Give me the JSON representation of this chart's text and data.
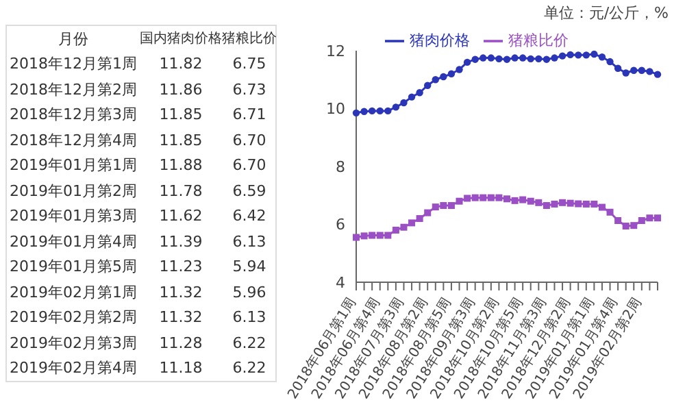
{
  "chart_data": [
    {
      "type": "other",
      "xlabel": "月份",
      "categories": [
        "2018年12月第1周",
        "2018年12月第2周",
        "2018年12月第3周",
        "2018年12月第4周",
        "2019年01月第1周",
        "2019年01月第2周",
        "2019年01月第3周",
        "2019年01月第4周",
        "2019年01月第5周",
        "2019年02月第1周",
        "2019年02月第2周",
        "2019年02月第3周",
        "2019年02月第4周"
      ],
      "data_labels": true,
      "series": [
        {
          "name": "国内猪肉价格",
          "values": [
            11.82,
            11.86,
            11.85,
            11.85,
            11.88,
            11.78,
            11.62,
            11.39,
            11.23,
            11.32,
            11.32,
            11.28,
            11.18
          ]
        },
        {
          "name": "猪粮比价",
          "values": [
            6.75,
            6.73,
            6.71,
            6.7,
            6.7,
            6.59,
            6.42,
            6.13,
            5.94,
            5.96,
            6.13,
            6.22,
            6.22
          ],
          "value_labels": [
            "6.75",
            "6.73",
            "6.71",
            "6.70",
            "6.70",
            "6.59",
            "6.42",
            "6.13",
            "5.94",
            "5.96",
            "6.13",
            "6.22",
            "6.22"
          ]
        }
      ]
    },
    {
      "type": "line",
      "annotations": [
        "单位：元/公斤，%"
      ],
      "categories": [
        "2018年06月第1周",
        null,
        null,
        "2018年06月第4周",
        null,
        null,
        "2018年07月第3周",
        null,
        null,
        "2018年08月第2周",
        null,
        null,
        "2018年08月第5周",
        null,
        null,
        "2018年09月第3周",
        null,
        null,
        "2018年10月第2周",
        null,
        null,
        "2018年10月第5周",
        null,
        null,
        "2018年11月第3周",
        null,
        null,
        "2018年12月第2周",
        null,
        null,
        "2019年01月第1周",
        null,
        null,
        "2019年01月第4周",
        null,
        null,
        "2019年02月第2周",
        null,
        null
      ],
      "series": [
        {
          "name": "猪肉价格",
          "color": "#2a35b8",
          "marker": "circle",
          "values": [
            9.85,
            9.9,
            9.92,
            9.92,
            9.92,
            10.05,
            10.2,
            10.4,
            10.55,
            10.8,
            11.0,
            11.1,
            11.2,
            11.35,
            11.6,
            11.7,
            11.75,
            11.75,
            11.72,
            11.7,
            11.75,
            11.75,
            11.72,
            11.72,
            11.7,
            11.75,
            11.82,
            11.86,
            11.85,
            11.85,
            11.88,
            11.78,
            11.62,
            11.39,
            11.23,
            11.32,
            11.32,
            11.28,
            11.18
          ]
        },
        {
          "name": "猪粮比价",
          "color": "#9b4fc4",
          "marker": "square",
          "values": [
            5.55,
            5.6,
            5.62,
            5.62,
            5.62,
            5.8,
            5.9,
            6.05,
            6.2,
            6.4,
            6.6,
            6.65,
            6.65,
            6.8,
            6.9,
            6.92,
            6.92,
            6.92,
            6.92,
            6.88,
            6.82,
            6.85,
            6.8,
            6.75,
            6.65,
            6.7,
            6.75,
            6.73,
            6.71,
            6.7,
            6.7,
            6.59,
            6.42,
            6.13,
            5.94,
            5.96,
            6.13,
            6.22,
            6.22
          ]
        }
      ],
      "ylim": [
        4,
        12
      ],
      "yticks": [
        4,
        6,
        8,
        10,
        12
      ],
      "grid": false,
      "legend": "top",
      "line_style": "solid"
    }
  ]
}
